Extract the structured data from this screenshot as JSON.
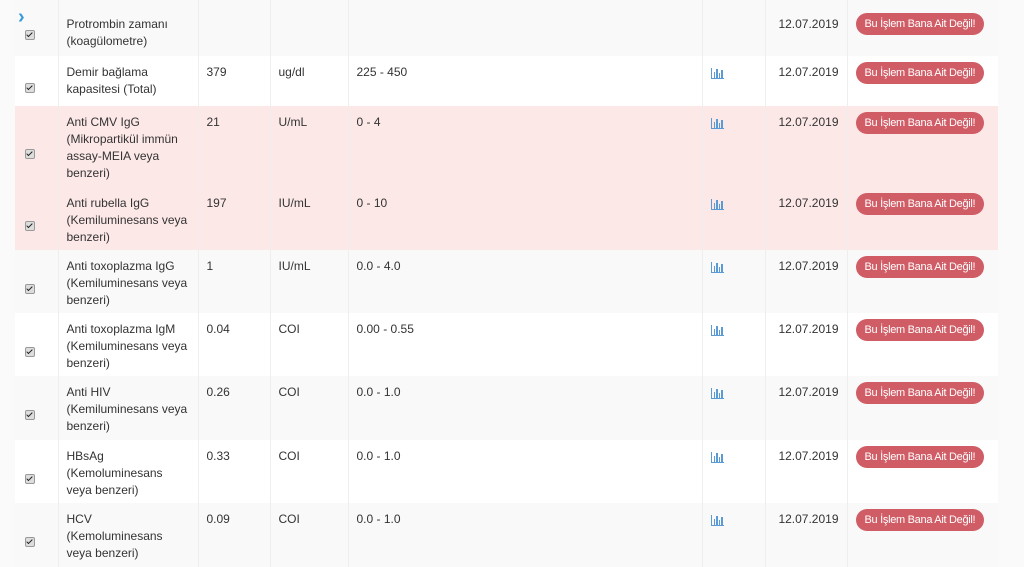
{
  "accent": "#d05c66",
  "rows": [
    {
      "name": "Protrombin zamanı (koagülometre)",
      "value": "",
      "unit": "",
      "range": "",
      "chart": false,
      "date": "12.07.2019",
      "action": "Bu İşlem Bana Ait Değil!",
      "highlight": false,
      "checked": true
    },
    {
      "name": "Demir bağlama kapasitesi (Total)",
      "value": "379",
      "unit": "ug/dl",
      "range": "225 - 450",
      "chart": true,
      "date": "12.07.2019",
      "action": "Bu İşlem Bana Ait Değil!",
      "highlight": false,
      "checked": true
    },
    {
      "name": "Anti CMV IgG (Mikropartikül immün assay-MEIA veya benzeri)",
      "value": "21",
      "unit": "U/mL",
      "range": "0 - 4",
      "chart": true,
      "date": "12.07.2019",
      "action": "Bu İşlem Bana Ait Değil!",
      "highlight": true,
      "checked": true
    },
    {
      "name": "Anti rubella IgG (Kemiluminesans veya benzeri)",
      "value": "197",
      "unit": "IU/mL",
      "range": "0 - 10",
      "chart": true,
      "date": "12.07.2019",
      "action": "Bu İşlem Bana Ait Değil!",
      "highlight": true,
      "checked": true
    },
    {
      "name": "Anti toxoplazma IgG (Kemiluminesans veya benzeri)",
      "value": "1",
      "unit": "IU/mL",
      "range": "0.0 - 4.0",
      "chart": true,
      "date": "12.07.2019",
      "action": "Bu İşlem Bana Ait Değil!",
      "highlight": false,
      "checked": true
    },
    {
      "name": "Anti toxoplazma IgM (Kemiluminesans veya benzeri)",
      "value": "0.04",
      "unit": "COI",
      "range": "0.00 - 0.55",
      "chart": true,
      "date": "12.07.2019",
      "action": "Bu İşlem Bana Ait Değil!",
      "highlight": false,
      "checked": true
    },
    {
      "name": "Anti HIV (Kemiluminesans veya benzeri)",
      "value": "0.26",
      "unit": "COI",
      "range": "0.0 - 1.0",
      "chart": true,
      "date": "12.07.2019",
      "action": "Bu İşlem Bana Ait Değil!",
      "highlight": false,
      "checked": true
    },
    {
      "name": "HBsAg (Kemoluminesans veya benzeri)",
      "value": "0.33",
      "unit": "COI",
      "range": "0.0 - 1.0",
      "chart": true,
      "date": "12.07.2019",
      "action": "Bu İşlem Bana Ait Değil!",
      "highlight": false,
      "checked": true
    },
    {
      "name": "HCV (Kemoluminesans veya benzeri)",
      "value": "0.09",
      "unit": "COI",
      "range": "0.0 - 1.0",
      "chart": true,
      "date": "12.07.2019",
      "action": "Bu İşlem Bana Ait Değil!",
      "highlight": false,
      "checked": true
    }
  ]
}
